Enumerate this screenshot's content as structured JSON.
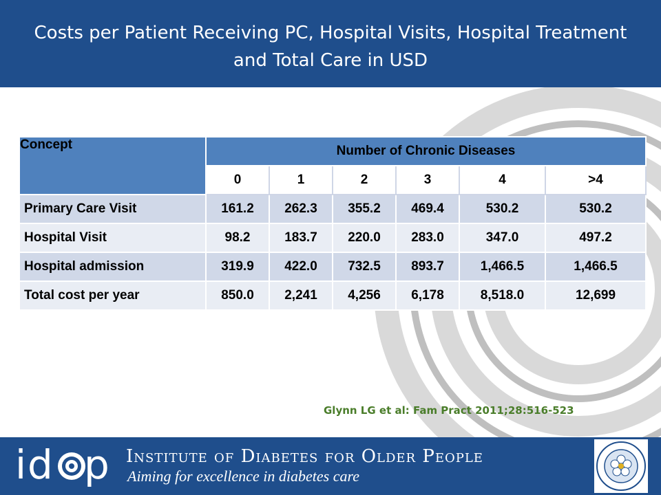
{
  "header": {
    "title": "Costs per Patient Receiving PC, Hospital Visits, Hospital Treatment and Total Care in USD"
  },
  "table": {
    "concept_header": "Concept",
    "group_header": "Number of Chronic Diseases",
    "subheaders": [
      "0",
      "1",
      "2",
      "3",
      "4",
      ">4"
    ],
    "rows": [
      {
        "label": "Primary Care Visit",
        "values": [
          "161.2",
          "262.3",
          "355.2",
          "469.4",
          "530.2",
          "530.2"
        ]
      },
      {
        "label": "Hospital Visit",
        "values": [
          "98.2",
          "183.7",
          "220.0",
          "283.0",
          "347.0",
          "497.2"
        ]
      },
      {
        "label": "Hospital admission",
        "values": [
          "319.9",
          "422.0",
          "732.5",
          "893.7",
          "1,466.5",
          "1,466.5"
        ]
      },
      {
        "label": "Total cost per year",
        "values": [
          "850.0",
          "2,241",
          "4,256",
          "6,178",
          "8,518.0",
          "12,699"
        ]
      }
    ]
  },
  "citation": "Glynn LG et al: Fam Pract 2011;28:516-523",
  "footer": {
    "logo_text": "idop",
    "institute_name": "Institute of Diabetes for Older People",
    "tagline": "Aiming for excellence in diabetes care"
  },
  "colors": {
    "header_bg": "#1f4e8c",
    "table_header": "#4f81bd",
    "row_odd": "#d0d8e8",
    "row_even": "#e9edf4",
    "citation": "#4a7d2a"
  }
}
